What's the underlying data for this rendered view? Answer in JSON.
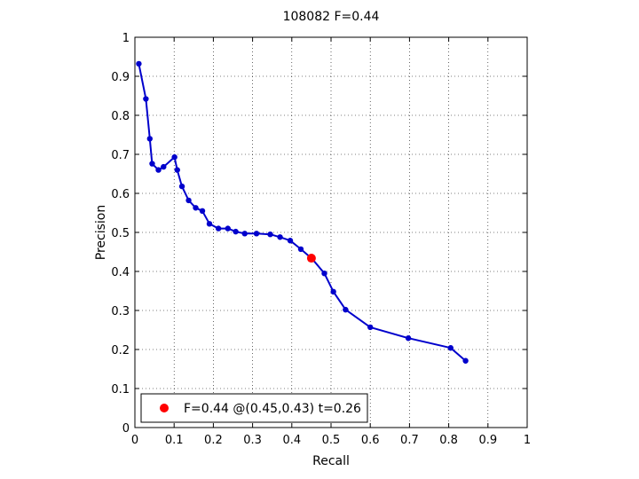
{
  "chart_data": {
    "type": "line",
    "title": "108082 F=0.44",
    "xlabel": "Recall",
    "ylabel": "Precision",
    "xlim": [
      0,
      1
    ],
    "ylim": [
      0,
      1
    ],
    "grid": true,
    "xticks": [
      0,
      0.1,
      0.2,
      0.3,
      0.4,
      0.5,
      0.6,
      0.7,
      0.8,
      0.9,
      1
    ],
    "yticks": [
      0,
      0.1,
      0.2,
      0.3,
      0.4,
      0.5,
      0.6,
      0.7,
      0.8,
      0.9,
      1
    ],
    "xtick_labels": [
      "0",
      "0.1",
      "0.2",
      "0.3",
      "0.4",
      "0.5",
      "0.6",
      "0.7",
      "0.8",
      "0.9",
      "1"
    ],
    "ytick_labels": [
      "0",
      "0.1",
      "0.2",
      "0.3",
      "0.4",
      "0.5",
      "0.6",
      "0.7",
      "0.8",
      "0.9",
      "1"
    ],
    "series": [
      {
        "color": "#0000cc",
        "points": [
          [
            0.01,
            0.932
          ],
          [
            0.028,
            0.842
          ],
          [
            0.038,
            0.74
          ],
          [
            0.044,
            0.676
          ],
          [
            0.06,
            0.66
          ],
          [
            0.073,
            0.668
          ],
          [
            0.101,
            0.693
          ],
          [
            0.108,
            0.66
          ],
          [
            0.12,
            0.618
          ],
          [
            0.137,
            0.582
          ],
          [
            0.155,
            0.563
          ],
          [
            0.172,
            0.555
          ],
          [
            0.19,
            0.522
          ],
          [
            0.213,
            0.51
          ],
          [
            0.237,
            0.51
          ],
          [
            0.257,
            0.502
          ],
          [
            0.28,
            0.497
          ],
          [
            0.31,
            0.497
          ],
          [
            0.345,
            0.495
          ],
          [
            0.37,
            0.488
          ],
          [
            0.396,
            0.479
          ],
          [
            0.423,
            0.457
          ],
          [
            0.452,
            0.432
          ],
          [
            0.483,
            0.395
          ],
          [
            0.506,
            0.348
          ],
          [
            0.537,
            0.302
          ],
          [
            0.6,
            0.257
          ],
          [
            0.697,
            0.229
          ],
          [
            0.805,
            0.204
          ],
          [
            0.843,
            0.171
          ]
        ]
      }
    ],
    "highlight": {
      "x": 0.45,
      "y": 0.434,
      "color": "#ff0000",
      "label": "F=0.44 @(0.45,0.43) t=0.26"
    },
    "legend_position": "bottom-left"
  }
}
